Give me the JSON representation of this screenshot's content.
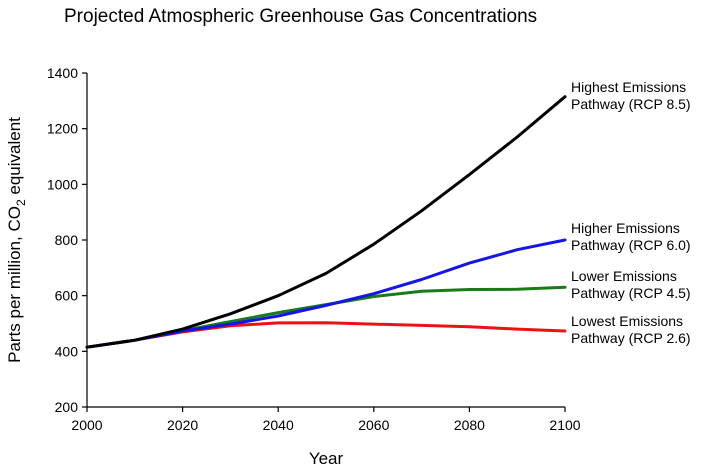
{
  "chart_data": {
    "type": "line",
    "title": "Projected Atmospheric Greenhouse Gas Concentrations",
    "xlabel": "Year",
    "ylabel": "Parts per million, CO2 equivalent",
    "ylabel_parts": [
      "Parts per million, CO",
      "2",
      " equivalent"
    ],
    "xlim": [
      2000,
      2100
    ],
    "ylim": [
      200,
      1400
    ],
    "xticks": [
      "2000",
      "2020",
      "2040",
      "2060",
      "2080",
      "2100"
    ],
    "yticks": [
      "200",
      "400",
      "600",
      "800",
      "1000",
      "1200",
      "1400"
    ],
    "grid": false,
    "legend": "direct labels at line ends",
    "x": [
      2000,
      2010,
      2020,
      2030,
      2040,
      2050,
      2060,
      2070,
      2080,
      2090,
      2100
    ],
    "series": [
      {
        "name": "Highest Emissions Pathway (RCP 8.5)",
        "label_lines": [
          "Highest Emissions",
          "Pathway (RCP 8.5)"
        ],
        "color": "#000000",
        "values": [
          415,
          440,
          480,
          535,
          600,
          680,
          785,
          905,
          1035,
          1170,
          1315
        ]
      },
      {
        "name": "Higher Emissions Pathway (RCP 6.0)",
        "label_lines": [
          "Higher Emissions",
          "Pathway (RCP 6.0)"
        ],
        "color": "#1515e6",
        "values": [
          415,
          440,
          473,
          498,
          527,
          565,
          607,
          658,
          717,
          765,
          800
        ]
      },
      {
        "name": "Lower Emissions Pathway (RCP 4.5)",
        "label_lines": [
          "Lower Emissions",
          "Pathway (RCP 4.5)"
        ],
        "color": "#1a7a1a",
        "values": [
          415,
          440,
          474,
          507,
          539,
          568,
          597,
          616,
          622,
          623,
          630
        ]
      },
      {
        "name": "Lowest Emissions Pathway (RCP 2.6)",
        "label_lines": [
          "Lowest Emissions",
          "Pathway (RCP 2.6)"
        ],
        "color": "#ee1111",
        "values": [
          415,
          440,
          470,
          492,
          502,
          503,
          498,
          493,
          488,
          480,
          473
        ]
      }
    ]
  }
}
